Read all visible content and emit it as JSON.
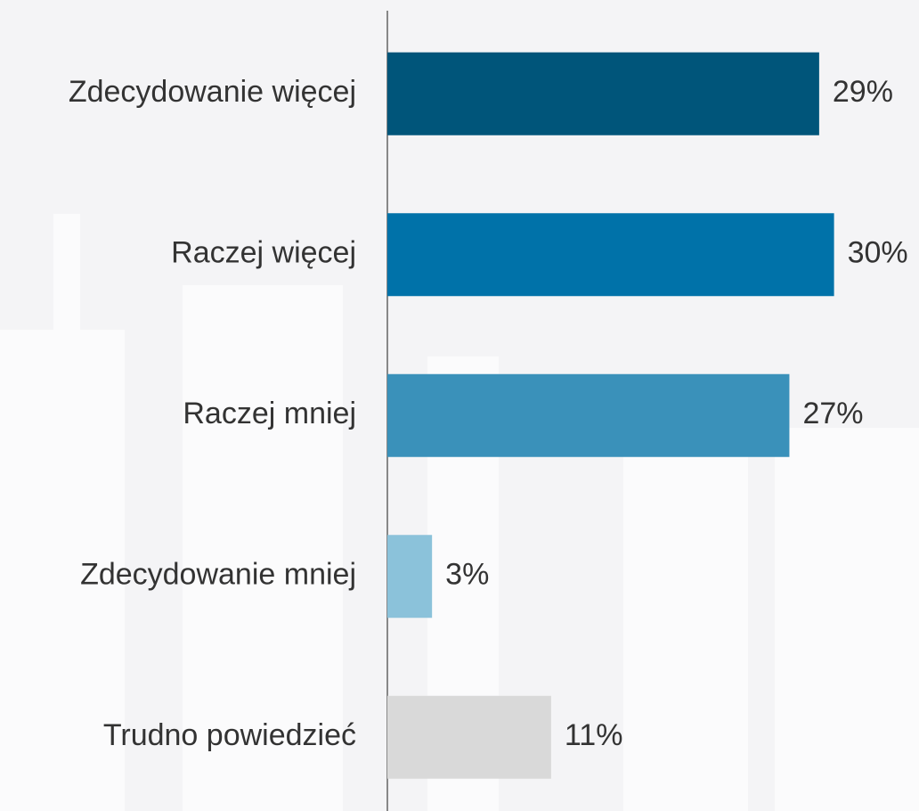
{
  "chart_data": {
    "type": "bar",
    "orientation": "horizontal",
    "categories": [
      "Zdecydowanie więcej",
      "Raczej więcej",
      "Raczej mniej",
      "Zdecydowanie mniej",
      "Trudno powiedzieć"
    ],
    "values": [
      29,
      30,
      27,
      3,
      11
    ],
    "value_labels": [
      "29%",
      "30%",
      "27%",
      "3%",
      "11%"
    ],
    "colors": [
      "#00557a",
      "#0072a9",
      "#3a91ba",
      "#8bc2da",
      "#d9d9d9"
    ]
  }
}
